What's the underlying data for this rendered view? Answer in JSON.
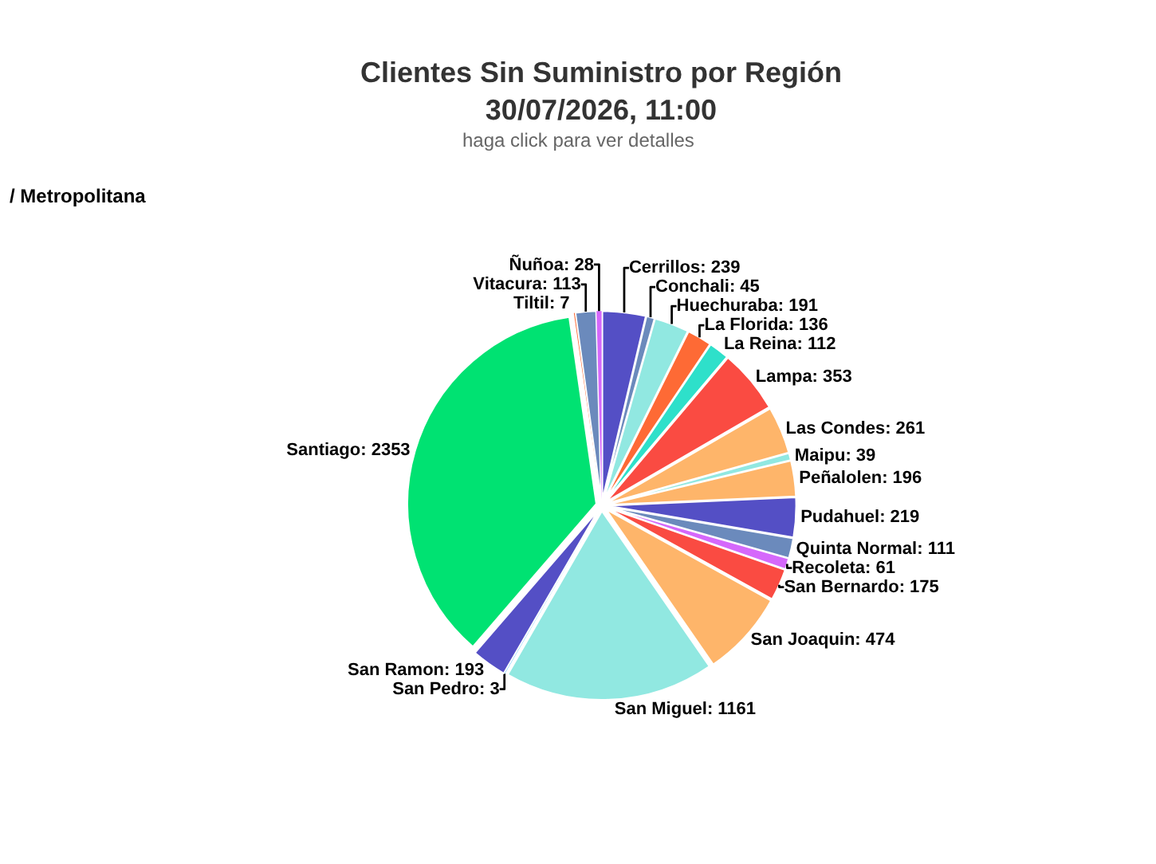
{
  "chart_data": {
    "type": "pie",
    "title": "Clientes Sin Suministro por Región\n30/07/2026, 11:00",
    "subtitle": "haga click para ver detalles",
    "annotations": [
      "/ Metropolitana"
    ],
    "categories": [
      "Cerrillos",
      "Conchali",
      "Huechuraba",
      "La Florida",
      "La Reina",
      "Lampa",
      "Las Condes",
      "Maipu",
      "Peñalolen",
      "Pudahuel",
      "Quinta Normal",
      "Recoleta",
      "San Bernardo",
      "San Joaquin",
      "San Miguel",
      "San Pedro",
      "San Ramon",
      "Santiago",
      "Tiltil",
      "Vitacura",
      "Ñuñoa"
    ],
    "values": [
      239,
      45,
      191,
      136,
      112,
      353,
      261,
      39,
      196,
      219,
      111,
      61,
      175,
      474,
      1161,
      3,
      193,
      2353,
      7,
      113,
      28
    ],
    "colors": [
      "#544fc5",
      "#6b8abc",
      "#91e8e1",
      "#fe6a35",
      "#2ee0ca",
      "#fa4b42",
      "#feb56a",
      "#91e8e1",
      "#feb56a",
      "#544fc5",
      "#6b8abc",
      "#d568fb",
      "#fa4b42",
      "#feb56a",
      "#91e8e1",
      "#2caffe",
      "#544fc5",
      "#00e272",
      "#fe6a35",
      "#6b8abc",
      "#d568fb"
    ],
    "value_labels": [
      ": 239",
      ": 45",
      ": 191",
      ": 136",
      ": 112",
      ": 353",
      ": 261",
      ": 39",
      ": 196",
      ": 219",
      ": 111",
      ": 61",
      ": 175",
      ": 474",
      ": 1161",
      ": 3",
      ": 193",
      ": 2353",
      ": 7",
      ": 113",
      ": 28"
    ],
    "legend": false
  }
}
